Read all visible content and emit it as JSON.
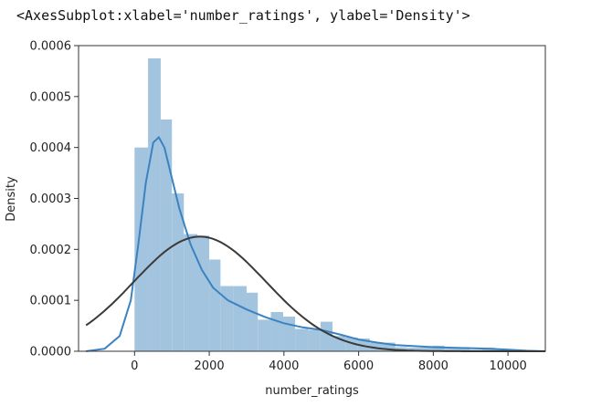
{
  "output_repr": "<AxesSubplot:xlabel='number_ratings', ylabel='Density'>",
  "chart_data": {
    "type": "bar",
    "xlabel": "number_ratings",
    "ylabel": "Density",
    "xlim": [
      -1500,
      11000
    ],
    "ylim": [
      0,
      0.0006
    ],
    "x_ticks": [
      0,
      2000,
      4000,
      6000,
      8000,
      10000
    ],
    "x_tick_labels": [
      "0",
      "2000",
      "4000",
      "6000",
      "8000",
      "10000"
    ],
    "y_ticks": [
      0,
      0.0001,
      0.0002,
      0.0003,
      0.0004,
      0.0005,
      0.0006
    ],
    "y_tick_labels": [
      "0.0000",
      "0.0001",
      "0.0002",
      "0.0003",
      "0.0004",
      "0.0005",
      "0.0006"
    ],
    "grid": false,
    "histogram": {
      "color": "#a3c4de",
      "bins": [
        {
          "x0": 0,
          "x1": 360,
          "density": 0.0004
        },
        {
          "x0": 360,
          "x1": 700,
          "density": 0.000575
        },
        {
          "x0": 700,
          "x1": 1000,
          "density": 0.000455
        },
        {
          "x0": 1000,
          "x1": 1320,
          "density": 0.00031
        },
        {
          "x0": 1320,
          "x1": 1680,
          "density": 0.00023
        },
        {
          "x0": 1680,
          "x1": 2000,
          "density": 0.000227
        },
        {
          "x0": 2000,
          "x1": 2300,
          "density": 0.00018
        },
        {
          "x0": 2300,
          "x1": 2650,
          "density": 0.000128
        },
        {
          "x0": 2650,
          "x1": 3000,
          "density": 0.000128
        },
        {
          "x0": 3000,
          "x1": 3300,
          "density": 0.000115
        },
        {
          "x0": 3300,
          "x1": 3650,
          "density": 6.2e-05
        },
        {
          "x0": 3650,
          "x1": 3980,
          "density": 7.7e-05
        },
        {
          "x0": 3980,
          "x1": 4300,
          "density": 6.8e-05
        },
        {
          "x0": 4300,
          "x1": 4650,
          "density": 4.4e-05
        },
        {
          "x0": 4650,
          "x1": 4980,
          "density": 4.2e-05
        },
        {
          "x0": 4980,
          "x1": 5300,
          "density": 5.8e-05
        },
        {
          "x0": 5300,
          "x1": 5650,
          "density": 3e-05
        },
        {
          "x0": 5650,
          "x1": 5980,
          "density": 2.7e-05
        },
        {
          "x0": 5980,
          "x1": 6300,
          "density": 2.5e-05
        },
        {
          "x0": 6300,
          "x1": 6650,
          "density": 1.7e-05
        },
        {
          "x0": 6650,
          "x1": 6980,
          "density": 1.7e-05
        },
        {
          "x0": 6980,
          "x1": 7300,
          "density": 8e-06
        },
        {
          "x0": 7300,
          "x1": 7650,
          "density": 7e-06
        },
        {
          "x0": 7650,
          "x1": 7980,
          "density": 7e-06
        },
        {
          "x0": 7980,
          "x1": 8300,
          "density": 1.1e-05
        },
        {
          "x0": 8300,
          "x1": 8650,
          "density": 5e-06
        },
        {
          "x0": 8650,
          "x1": 8980,
          "density": 5e-06
        },
        {
          "x0": 8980,
          "x1": 9300,
          "density": 3e-06
        },
        {
          "x0": 9300,
          "x1": 9650,
          "density": 7e-06
        },
        {
          "x0": 9650,
          "x1": 9980,
          "density": 3e-06
        }
      ]
    },
    "series": [
      {
        "type": "line",
        "color": "#3b82c1",
        "points": [
          [
            -1300,
            0
          ],
          [
            -800,
            5e-06
          ],
          [
            -400,
            3e-05
          ],
          [
            -100,
            0.0001
          ],
          [
            100,
            0.00021
          ],
          [
            300,
            0.00033
          ],
          [
            500,
            0.00041
          ],
          [
            650,
            0.00042
          ],
          [
            800,
            0.0004
          ],
          [
            1000,
            0.00034
          ],
          [
            1200,
            0.00028
          ],
          [
            1500,
            0.00021
          ],
          [
            1800,
            0.00016
          ],
          [
            2100,
            0.000125
          ],
          [
            2500,
            0.0001
          ],
          [
            3000,
            8.2e-05
          ],
          [
            3500,
            6.7e-05
          ],
          [
            4000,
            5.5e-05
          ],
          [
            4500,
            4.7e-05
          ],
          [
            5000,
            4.2e-05
          ],
          [
            5500,
            3.3e-05
          ],
          [
            6000,
            2.3e-05
          ],
          [
            6500,
            1.7e-05
          ],
          [
            7000,
            1.2e-05
          ],
          [
            7500,
            1e-05
          ],
          [
            8000,
            8e-06
          ],
          [
            8500,
            7e-06
          ],
          [
            9000,
            6e-06
          ],
          [
            9500,
            5e-06
          ],
          [
            10000,
            3e-06
          ],
          [
            10500,
            1e-06
          ],
          [
            11000,
            0
          ]
        ]
      },
      {
        "type": "normal_fit",
        "color": "#3a3a3a",
        "mean": 1750,
        "peak_density": 0.000225,
        "sd": 1770,
        "x_range": [
          -1300,
          11000
        ]
      }
    ]
  }
}
